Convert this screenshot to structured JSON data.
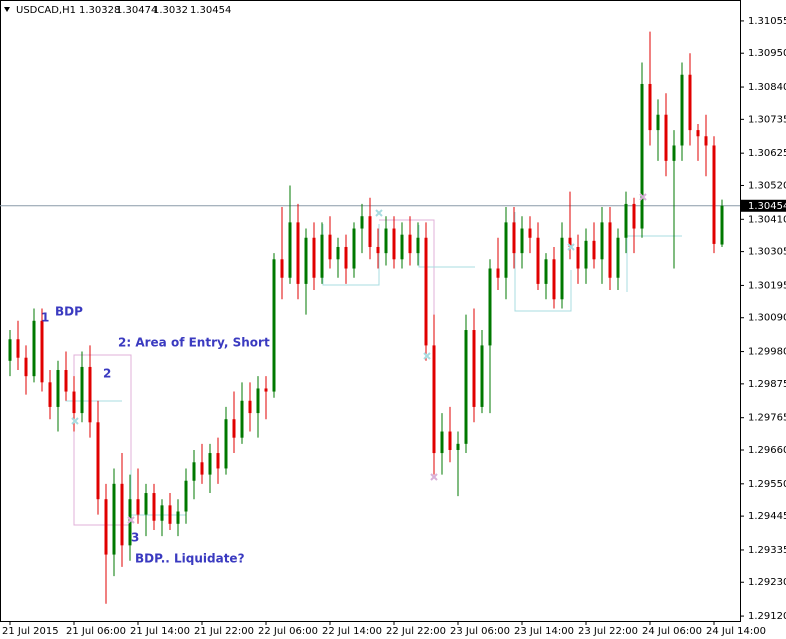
{
  "chart_data": {
    "type": "ohlc",
    "symbol": "USDCAD,H1",
    "up_color": "#007800",
    "down_color": "#e00000",
    "current_line_color": "#8a9aa8",
    "categories": [
      "21 Jul 2015",
      null,
      null,
      null,
      null,
      null,
      null,
      null,
      "21 Jul 06:00",
      null,
      null,
      null,
      null,
      null,
      null,
      null,
      "21 Jul 14:00",
      null,
      null,
      null,
      null,
      null,
      null,
      null,
      "21 Jul 22:00",
      null,
      null,
      null,
      null,
      null,
      null,
      null,
      "22 Jul 06:00",
      null,
      null,
      null,
      null,
      null,
      null,
      null,
      "22 Jul 14:00",
      null,
      null,
      null,
      null,
      null,
      null,
      null,
      "22 Jul 22:00",
      null,
      null,
      null,
      null,
      null,
      null,
      null,
      "23 Jul 06:00",
      null,
      null,
      null,
      null,
      null,
      null,
      null,
      "23 Jul 14:00",
      null,
      null,
      null,
      null,
      null,
      null,
      null,
      "23 Jul 22:00",
      null,
      null,
      null,
      null,
      null,
      null,
      null,
      "24 Jul 06:00",
      null,
      null,
      null,
      null,
      null,
      null,
      null,
      "24 Jul 14:00",
      null
    ],
    "open": [
      1.2995,
      1.3002,
      1.2996,
      1.299,
      1.3008,
      1.2988,
      1.298,
      1.2992,
      1.2985,
      1.2978,
      1.2993,
      1.2975,
      1.295,
      1.2932,
      1.2955,
      1.2935,
      1.295,
      1.2945,
      1.2952,
      1.2943,
      1.2948,
      1.2942,
      1.2946,
      1.2956,
      1.2962,
      1.2958,
      1.2965,
      1.296,
      1.2976,
      1.297,
      1.2982,
      1.2978,
      1.2986,
      1.2985,
      1.3028,
      1.3022,
      1.304,
      1.302,
      1.3035,
      1.3022,
      1.3036,
      1.3028,
      1.3032,
      1.3025,
      1.3038,
      1.3042,
      1.3032,
      1.303,
      1.3038,
      1.3028,
      1.3036,
      1.303,
      1.3035,
      1.3,
      1.2965,
      1.2972,
      1.2966,
      1.2968,
      1.3005,
      1.298,
      1.3,
      1.3025,
      1.3022,
      1.304,
      1.303,
      1.3038,
      1.3035,
      1.302,
      1.3028,
      1.3015,
      1.3035,
      1.3032,
      1.3025,
      1.3034,
      1.3028,
      1.304,
      1.3022,
      1.3035,
      1.3046,
      1.3038,
      1.3085,
      1.307,
      1.3075,
      1.306,
      1.3065,
      1.3088,
      1.307,
      1.3068,
      1.3065,
      1.30328
    ],
    "high": [
      1.3005,
      1.3008,
      1.3,
      1.3012,
      1.3012,
      1.2992,
      1.2995,
      1.2998,
      1.299,
      1.2998,
      1.3,
      1.2982,
      1.2955,
      1.296,
      1.2965,
      1.2958,
      1.296,
      1.2955,
      1.2955,
      1.295,
      1.2952,
      1.295,
      1.296,
      1.2966,
      1.2968,
      1.2968,
      1.297,
      1.298,
      1.2985,
      1.2988,
      1.2988,
      1.299,
      1.299,
      1.303,
      1.3045,
      1.3052,
      1.3046,
      1.3038,
      1.304,
      1.304,
      1.3042,
      1.3035,
      1.3036,
      1.304,
      1.3046,
      1.3048,
      1.3038,
      1.3042,
      1.3042,
      1.304,
      1.3042,
      1.304,
      1.304,
      1.301,
      1.2978,
      1.298,
      1.2972,
      1.301,
      1.3012,
      1.3005,
      1.3028,
      1.3035,
      1.3045,
      1.3045,
      1.3042,
      1.3042,
      1.304,
      1.303,
      1.3032,
      1.304,
      1.305,
      1.3036,
      1.3038,
      1.304,
      1.3045,
      1.3045,
      1.3038,
      1.305,
      1.3048,
      1.3092,
      1.3102,
      1.308,
      1.3082,
      1.307,
      1.3092,
      1.3095,
      1.3072,
      1.3075,
      1.3068,
      1.30474
    ],
    "low": [
      1.299,
      1.2992,
      1.2984,
      1.2988,
      1.2985,
      1.2976,
      1.2972,
      1.2982,
      1.2972,
      1.2975,
      1.297,
      1.2945,
      1.2916,
      1.2925,
      1.2928,
      1.293,
      1.2942,
      1.2938,
      1.294,
      1.2938,
      1.294,
      1.2938,
      1.2942,
      1.295,
      1.2955,
      1.2952,
      1.2955,
      1.2958,
      1.2965,
      1.2968,
      1.2972,
      1.297,
      1.2976,
      1.2983,
      1.3015,
      1.302,
      1.3015,
      1.301,
      1.3018,
      1.302,
      1.3025,
      1.3022,
      1.302,
      1.3022,
      1.303,
      1.3028,
      1.3025,
      1.3026,
      1.3025,
      1.3025,
      1.3026,
      1.3026,
      1.2995,
      1.2958,
      1.2958,
      1.2962,
      1.2951,
      1.2965,
      1.2975,
      1.2978,
      1.2978,
      1.3018,
      1.3015,
      1.3025,
      1.3025,
      1.303,
      1.3018,
      1.3015,
      1.3012,
      1.3012,
      1.3028,
      1.302,
      1.302,
      1.3025,
      1.302,
      1.3018,
      1.3018,
      1.303,
      1.303,
      1.3035,
      1.3065,
      1.306,
      1.3055,
      1.3025,
      1.306,
      1.3065,
      1.306,
      1.3055,
      1.303,
      1.3032
    ],
    "close": [
      1.3002,
      1.2996,
      1.299,
      1.3008,
      1.2988,
      1.298,
      1.2992,
      1.2985,
      1.2978,
      1.2993,
      1.2975,
      1.295,
      1.2932,
      1.2955,
      1.2935,
      1.295,
      1.2945,
      1.2952,
      1.2943,
      1.2948,
      1.2942,
      1.2946,
      1.2956,
      1.2962,
      1.2958,
      1.2965,
      1.296,
      1.2976,
      1.297,
      1.2982,
      1.2978,
      1.2986,
      1.2985,
      1.3028,
      1.3022,
      1.304,
      1.302,
      1.3035,
      1.3022,
      1.3036,
      1.3028,
      1.3032,
      1.3025,
      1.3038,
      1.3042,
      1.3032,
      1.303,
      1.3038,
      1.3028,
      1.3036,
      1.303,
      1.3035,
      1.3,
      1.2965,
      1.2972,
      1.2966,
      1.2968,
      1.3005,
      1.298,
      1.3,
      1.3025,
      1.3022,
      1.304,
      1.303,
      1.3038,
      1.3035,
      1.302,
      1.3028,
      1.3015,
      1.3035,
      1.3032,
      1.3025,
      1.3034,
      1.3028,
      1.304,
      1.3022,
      1.3035,
      1.3046,
      1.3038,
      1.3085,
      1.307,
      1.3075,
      1.306,
      1.3065,
      1.3088,
      1.307,
      1.3068,
      1.3065,
      1.3033,
      1.30454
    ],
    "ylim": [
      1.29104,
      1.31123
    ],
    "yticks": [
      1.31055,
      {
        "value": 1.3095,
        "label": "1.30950"
      },
      {
        "value": 1.3084,
        "label": "1.30840"
      },
      1.30735,
      1.30625,
      {
        "value": 1.3052,
        "label": "1.30520"
      },
      {
        "value": 1.3041,
        "label": "1.30410"
      },
      1.30305,
      1.30195,
      {
        "value": 1.3009,
        "label": "1.30090"
      },
      {
        "value": 1.2998,
        "label": "1.29980"
      },
      1.29875,
      1.29765,
      {
        "value": 1.2966,
        "label": "1.29660"
      },
      {
        "value": 1.2955,
        "label": "1.29550"
      },
      1.29445,
      1.29335,
      {
        "value": 1.2923,
        "label": "1.29230"
      },
      {
        "value": 1.2912,
        "label": "1.29120"
      }
    ],
    "annotations": [
      "1",
      "BDP",
      "2: Area of Entry, Short",
      "2",
      "3",
      "BDP.. Liquidate?"
    ]
  }
}
